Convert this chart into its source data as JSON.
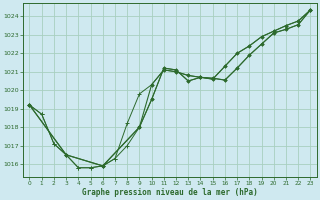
{
  "background_color": "#cfe9f0",
  "grid_color": "#a8cfc0",
  "line_color": "#2d6a2d",
  "title": "Graphe pression niveau de la mer (hPa)",
  "xlim": [
    -0.5,
    23.5
  ],
  "ylim": [
    1015.3,
    1024.7
  ],
  "yticks": [
    1016,
    1017,
    1018,
    1019,
    1020,
    1021,
    1022,
    1023,
    1024
  ],
  "xticks": [
    0,
    1,
    2,
    3,
    4,
    5,
    6,
    7,
    8,
    9,
    10,
    11,
    12,
    13,
    14,
    15,
    16,
    17,
    18,
    19,
    20,
    21,
    22,
    23
  ],
  "line1_x": [
    0,
    1,
    2,
    3,
    4,
    5,
    6,
    7,
    8,
    9,
    10,
    11,
    12,
    13,
    14,
    15,
    16,
    17,
    18,
    19,
    20,
    21,
    22,
    23
  ],
  "line1_y": [
    1019.2,
    1018.7,
    1017.1,
    1016.5,
    1015.8,
    1015.8,
    1015.9,
    1016.3,
    1017.0,
    1018.0,
    1019.5,
    1021.2,
    1021.1,
    1020.5,
    1020.7,
    1020.65,
    1020.55,
    1021.2,
    1021.9,
    1022.5,
    1023.1,
    1023.3,
    1023.55,
    1024.35
  ],
  "line2_x": [
    0,
    1,
    2,
    3,
    4,
    5,
    6,
    7,
    8,
    9,
    10,
    11,
    12,
    13,
    14,
    15,
    16,
    17,
    18,
    19,
    20,
    21,
    22,
    23
  ],
  "line2_y": [
    1019.2,
    1018.7,
    1017.1,
    1016.5,
    1015.8,
    1015.8,
    1015.9,
    1016.3,
    1018.2,
    1019.8,
    1020.3,
    1021.1,
    1021.0,
    1020.8,
    1020.7,
    1020.6,
    1021.3,
    1022.0,
    1022.4,
    1022.9,
    1023.2,
    1023.5,
    1023.75,
    1024.35
  ],
  "line3_x": [
    0,
    3,
    6,
    9,
    10,
    11,
    12,
    13,
    14,
    15,
    16,
    17,
    18,
    19,
    20,
    21,
    22,
    23
  ],
  "line3_y": [
    1019.2,
    1016.5,
    1015.9,
    1018.0,
    1019.5,
    1021.2,
    1021.1,
    1020.5,
    1020.7,
    1020.65,
    1020.55,
    1021.2,
    1021.9,
    1022.5,
    1023.1,
    1023.3,
    1023.55,
    1024.35
  ],
  "line4_x": [
    0,
    3,
    6,
    9,
    10,
    11,
    12,
    13,
    14,
    15,
    16,
    17,
    18,
    19,
    20,
    21,
    22,
    23
  ],
  "line4_y": [
    1019.2,
    1016.5,
    1015.9,
    1018.0,
    1020.3,
    1021.1,
    1021.0,
    1020.8,
    1020.7,
    1020.6,
    1021.3,
    1022.0,
    1022.4,
    1022.9,
    1023.2,
    1023.5,
    1023.75,
    1024.35
  ]
}
